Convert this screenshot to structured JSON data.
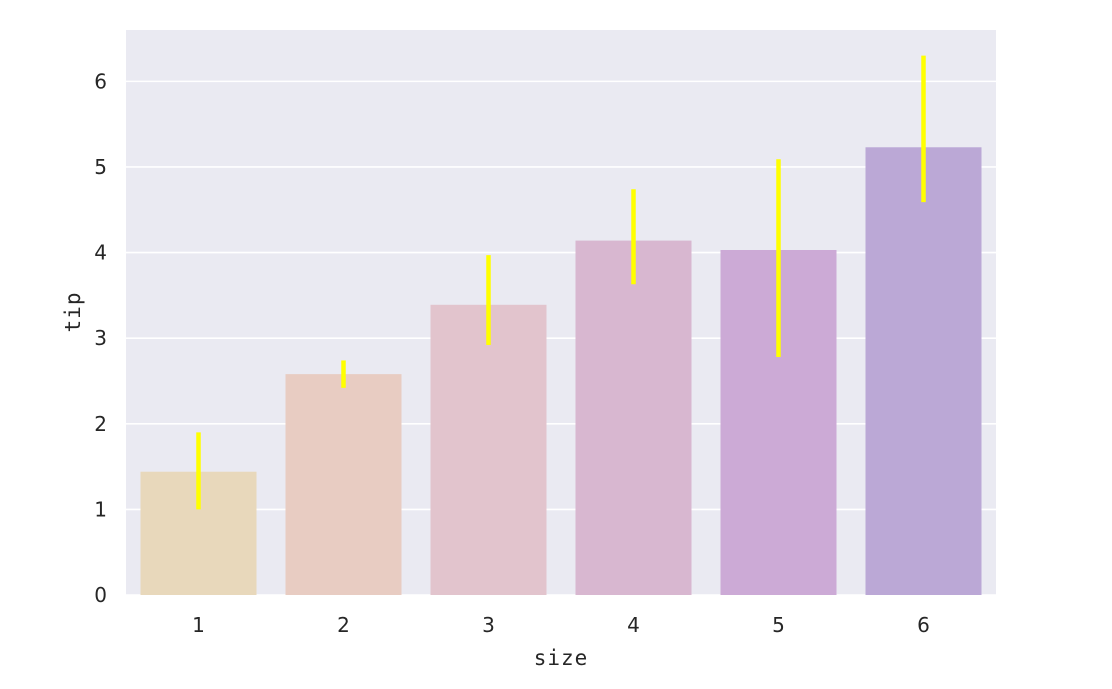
{
  "chart_data": {
    "type": "bar",
    "xlabel": "size",
    "ylabel": "tip",
    "categories": [
      "1",
      "2",
      "3",
      "4",
      "5",
      "6"
    ],
    "values": [
      1.44,
      2.58,
      3.39,
      4.14,
      4.03,
      5.23
    ],
    "error_bars": [
      {
        "low": 1.0,
        "high": 1.9
      },
      {
        "low": 2.42,
        "high": 2.74
      },
      {
        "low": 2.92,
        "high": 3.97
      },
      {
        "low": 3.63,
        "high": 4.74
      },
      {
        "low": 2.78,
        "high": 5.09
      },
      {
        "low": 4.59,
        "high": 6.3
      }
    ],
    "ylim": [
      0,
      6.6
    ],
    "yticks": [
      0,
      1,
      2,
      3,
      4,
      5,
      6
    ],
    "grid": true,
    "colors": {
      "background": "#EAEAF2",
      "grid": "#FFFFFF",
      "error_bar": "#FFFF00",
      "bars": [
        "#E8D8BB",
        "#E8CCC2",
        "#E2C4CD",
        "#D8B7D0",
        "#CCAAD6",
        "#BBA8D6"
      ]
    }
  }
}
